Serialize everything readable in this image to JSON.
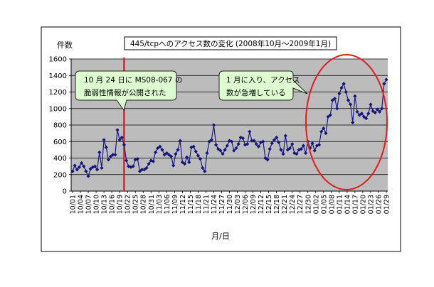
{
  "chart_data": {
    "type": "line",
    "title": "445/tcpへのアクセス数の変化 (2008年10月～2009年1月)",
    "ylabel": "件数",
    "xlabel": "月/日",
    "ylim": [
      0,
      1600
    ],
    "yticks": [
      0,
      200,
      400,
      600,
      800,
      1000,
      1200,
      1400,
      1600
    ],
    "x_tick_labels": [
      "10/01",
      "10/04",
      "10/07",
      "10/10",
      "10/13",
      "10/16",
      "10/19",
      "10/22",
      "10/25",
      "10/28",
      "10/31",
      "11/03",
      "11/06",
      "11/09",
      "11/12",
      "11/15",
      "11/18",
      "11/21",
      "11/24",
      "11/27",
      "11/30",
      "12/03",
      "12/06",
      "12/09",
      "12/12",
      "12/15",
      "12/18",
      "12/21",
      "12/24",
      "12/27",
      "12/30",
      "01/02",
      "01/05",
      "01/08",
      "01/11",
      "01/14",
      "01/17",
      "01/20",
      "01/23",
      "01/26",
      "01/29"
    ],
    "grid": true,
    "legend": "none",
    "series": [
      {
        "values": [
          240,
          310,
          260,
          290,
          340,
          300,
          240,
          180,
          270,
          290,
          300,
          260,
          470,
          280,
          620,
          530,
          380,
          420,
          440,
          440,
          740,
          620,
          650,
          560,
          370,
          300,
          290,
          300,
          380,
          390,
          240,
          260,
          260,
          280,
          330,
          370,
          360,
          470,
          520,
          540,
          500,
          440,
          460,
          440,
          420,
          310,
          450,
          500,
          610,
          350,
          330,
          410,
          350,
          530,
          540,
          480,
          430,
          390,
          280,
          240,
          460,
          600,
          620,
          800,
          560,
          510,
          490,
          450,
          500,
          550,
          610,
          600,
          490,
          520,
          570,
          650,
          640,
          560,
          570,
          720,
          610,
          610,
          570,
          540,
          590,
          600,
          400,
          380,
          510,
          580,
          620,
          650,
          590,
          500,
          450,
          670,
          500,
          520,
          570,
          460,
          450,
          500,
          510,
          550,
          460,
          600,
          520,
          580,
          490,
          550,
          560,
          720,
          760,
          700,
          900,
          920,
          1100,
          1120,
          1000,
          1180,
          1250,
          1300,
          1200,
          1100,
          1050,
          830,
          1150,
          960,
          920,
          940,
          900,
          880,
          940,
          1050,
          970,
          950,
          990,
          960,
          1000,
          1300,
          1350
        ]
      }
    ],
    "annotations": [
      {
        "text_lines": [
          "10 月 24 日に MS08-067 の",
          "脆弱性情報が公開された"
        ]
      },
      {
        "text_lines": [
          "1 月に入り、アクセス",
          "数が急増している"
        ]
      }
    ],
    "colors": {
      "line": "#1a1a8c",
      "marker": "#14147a",
      "plot_bg": "#bcbcbc",
      "marker_vline": "#e0202a",
      "highlight": "#e21d1d",
      "callout_bg": "#ddfdd0",
      "callout_border": "#222222"
    }
  }
}
